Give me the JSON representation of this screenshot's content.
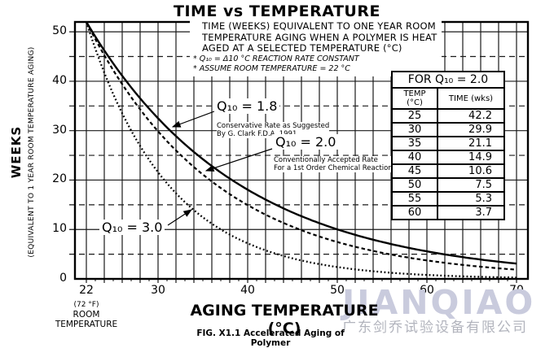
{
  "title": "TIME vs TEMPERATURE",
  "annotation": {
    "lines": [
      "TIME (WEEKS) EQUIVALENT TO ONE YEAR ROOM",
      "TEMPERATURE AGING WHEN A POLYMER IS HEAT",
      "AGED AT A SELECTED TEMPERATURE (°C)"
    ],
    "notes": [
      "* Q₁₀ = Δ10 °C REACTION RATE CONSTANT",
      "* ASSUME ROOM TEMPERATURE = 22 °C"
    ]
  },
  "curve_labels": {
    "q18": "Q₁₀ = 1.8",
    "q18_sub1": "Conservative Rate as Suggested",
    "q18_sub2": "By G. Clark F.D.A. 1991",
    "q20": "Q₁₀ = 2.0",
    "q20_sub1": "Conventionally Accepted Rate",
    "q20_sub2": "For a 1st Order Chemical Reaction",
    "q30": "Q₁₀ = 3.0"
  },
  "table": {
    "title": "FOR Q₁₀ = 2.0",
    "columns": [
      "TEMP (°C)",
      "TIME (wks)"
    ],
    "rows": [
      [
        "25",
        "42.2"
      ],
      [
        "30",
        "29.9"
      ],
      [
        "35",
        "21.1"
      ],
      [
        "40",
        "14.9"
      ],
      [
        "45",
        "10.6"
      ],
      [
        "50",
        "7.5"
      ],
      [
        "55",
        "5.3"
      ],
      [
        "60",
        "3.7"
      ]
    ]
  },
  "x_axis": {
    "title": "AGING TEMPERATURE (°C)",
    "room_note": [
      "(72 °F)",
      "ROOM",
      "TEMPERATURE"
    ]
  },
  "y_axis": {
    "title": "WEEKS",
    "subtitle": "(EQUIVALENT TO 1 YEAR ROOM TEMPERATURE AGING)"
  },
  "caption": "FIG. X1.1 Accelerated Aging of Polymer",
  "watermark": {
    "brand": "JIANQIAO",
    "company": "广东剑乔试验设备有限公司"
  },
  "chart_data": {
    "type": "line",
    "title": "TIME vs TEMPERATURE",
    "xlabel": "AGING TEMPERATURE (°C)",
    "ylabel": "WEEKS (EQUIVALENT TO 1 YEAR ROOM TEMPERATURE AGING)",
    "xlim": [
      20.7,
      71.3
    ],
    "ylim": [
      0,
      52
    ],
    "x_ticks": [
      22,
      30,
      40,
      50,
      60,
      70
    ],
    "y_ticks": [
      0,
      10,
      20,
      30,
      40,
      50
    ],
    "grid": "vertical solid every 2 °C; horizontal solid every 10 wks, dashed every 5 wks",
    "legend_position": "labels on curves",
    "x": [
      22,
      25,
      30,
      35,
      40,
      45,
      50,
      55,
      60,
      65,
      70
    ],
    "series": [
      {
        "name": "Q₁₀ = 1.8",
        "q": 1.8,
        "style": "solid",
        "values": [
          52,
          43.6,
          32.4,
          24.2,
          18.0,
          13.4,
          10.0,
          7.5,
          5.6,
          4.2,
          3.1
        ]
      },
      {
        "name": "Q₁₀ = 2.0",
        "q": 2.0,
        "style": "dashed",
        "values": [
          52,
          42.2,
          29.9,
          21.1,
          14.9,
          10.6,
          7.5,
          5.3,
          3.7,
          2.6,
          1.9
        ]
      },
      {
        "name": "Q₁₀ = 3.0",
        "q": 3.0,
        "style": "dotted",
        "values": [
          52,
          37.4,
          21.6,
          12.5,
          7.2,
          4.2,
          2.4,
          1.4,
          0.8,
          0.5,
          0.3
        ]
      }
    ]
  }
}
